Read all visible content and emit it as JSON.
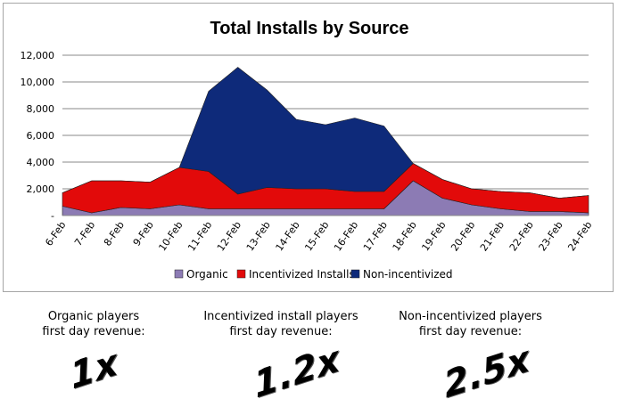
{
  "chart_data": {
    "type": "area",
    "stacked": true,
    "title": "Total Installs by Source",
    "categories": [
      "6-Feb",
      "7-Feb",
      "8-Feb",
      "9-Feb",
      "10-Feb",
      "11-Feb",
      "12-Feb",
      "13-Feb",
      "14-Feb",
      "15-Feb",
      "16-Feb",
      "17-Feb",
      "18-Feb",
      "19-Feb",
      "20-Feb",
      "21-Feb",
      "22-Feb",
      "23-Feb",
      "24-Feb"
    ],
    "ylim": [
      0,
      12000
    ],
    "yticks": [
      "-",
      "2,000",
      "4,000",
      "6,000",
      "8,000",
      "10,000",
      "12,000"
    ],
    "grid": true,
    "legend": "bottom",
    "series": [
      {
        "name": "Organic",
        "color": "#8c7bb4",
        "values": [
          700,
          200,
          600,
          500,
          800,
          500,
          500,
          500,
          500,
          500,
          500,
          500,
          2600,
          1300,
          800,
          500,
          300,
          300,
          200
        ]
      },
      {
        "name": "Incentivized Installs",
        "color": "#e20a0a",
        "values": [
          1000,
          2400,
          2000,
          2000,
          2800,
          2800,
          1100,
          1600,
          1500,
          1500,
          1300,
          1300,
          1300,
          1400,
          1200,
          1300,
          1400,
          1000,
          1300
        ]
      },
      {
        "name": "Non-incentivized",
        "color": "#0e2a7a",
        "values": [
          0,
          0,
          0,
          0,
          0,
          6000,
          9500,
          7300,
          5200,
          4800,
          5500,
          4900,
          0,
          0,
          0,
          0,
          0,
          0,
          0
        ]
      }
    ]
  },
  "captions": [
    {
      "line1": "Organic players",
      "line2": "first day revenue:",
      "multiplier": "1x"
    },
    {
      "line1": "Incentivized install players",
      "line2": "first day revenue:",
      "multiplier": "1.2x"
    },
    {
      "line1": "Non-incentivized players",
      "line2": "first day revenue:",
      "multiplier": "2.5x"
    }
  ]
}
